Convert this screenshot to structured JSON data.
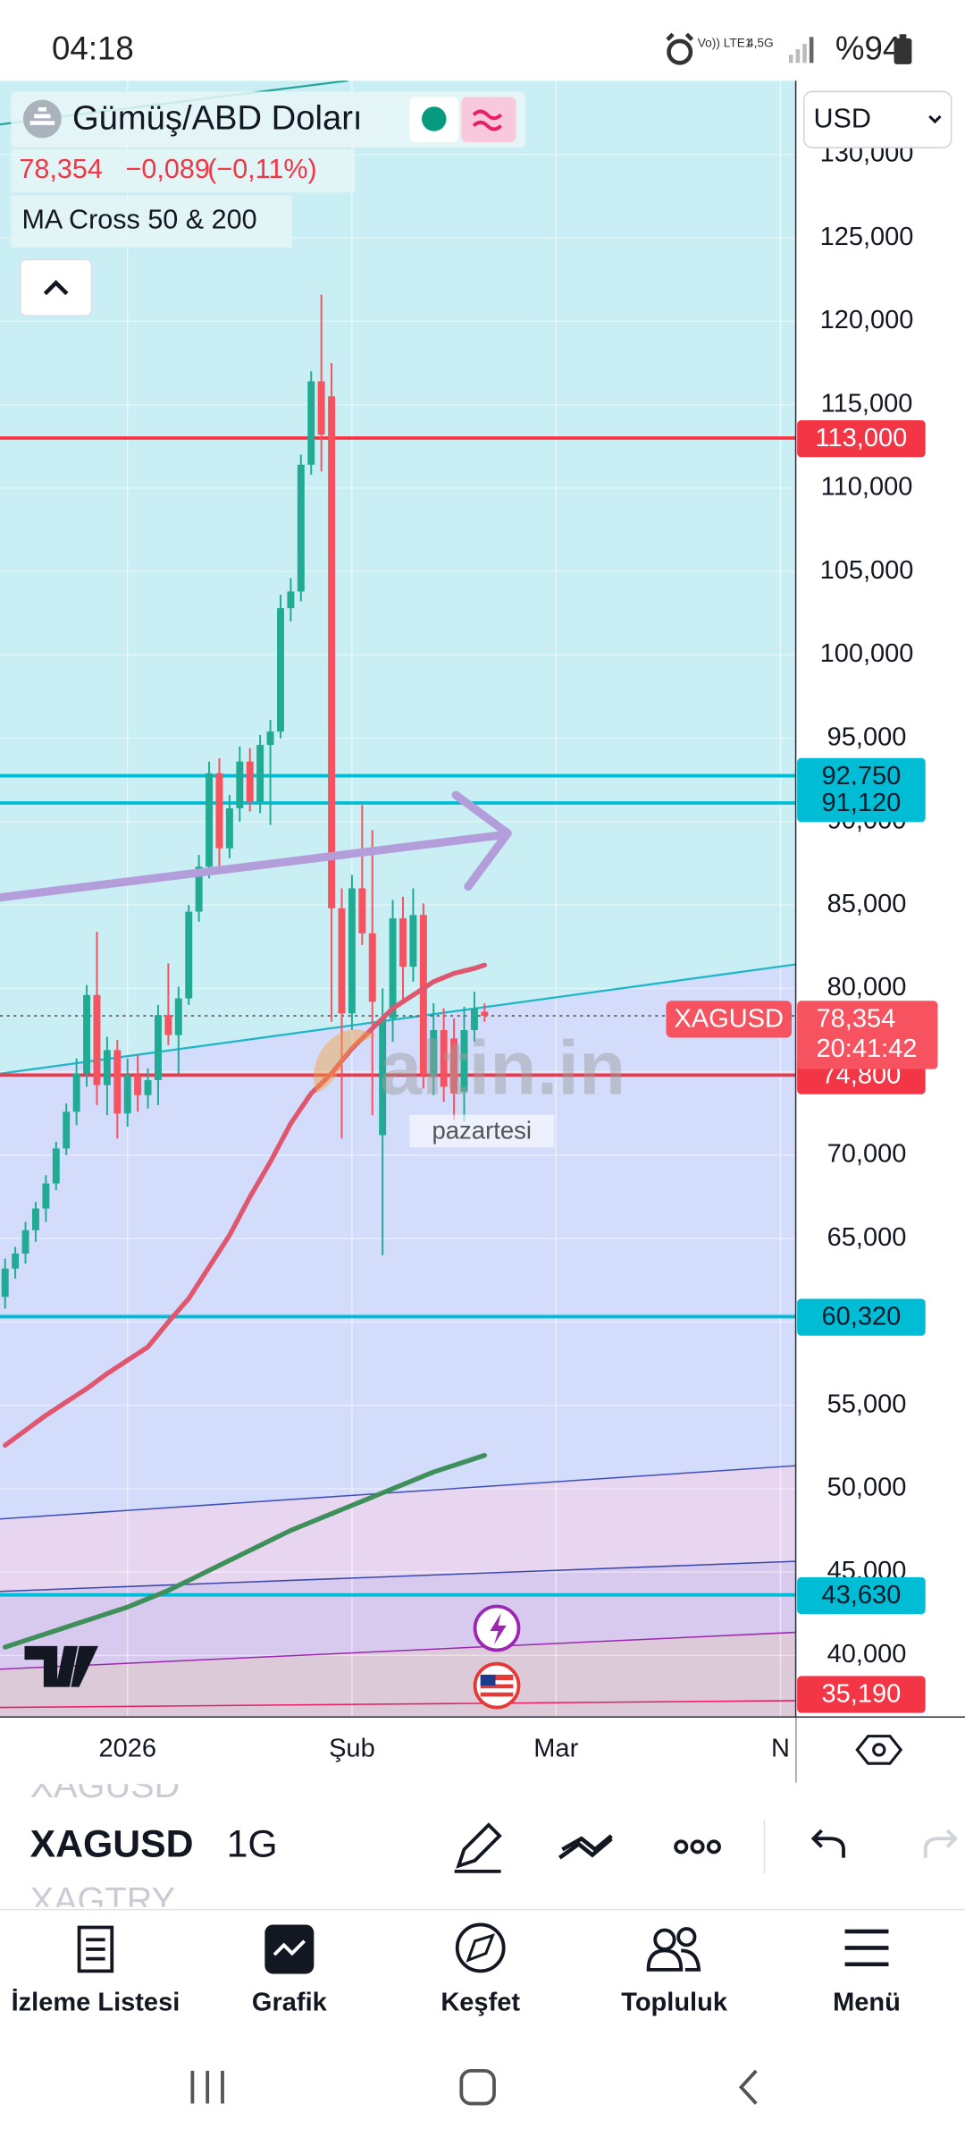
{
  "status_bar": {
    "time": "04:18",
    "network": "Vo)) LTE1",
    "network_gen": "4,5G",
    "battery": "%94"
  },
  "chart_data": {
    "type": "candlestick",
    "title": "Gümüş/ABD Doları",
    "last": {
      "value": 78.354,
      "label": "78,354"
    },
    "change": {
      "value": -0.089,
      "label": "−0,089"
    },
    "change_pct": {
      "value": -0.11,
      "label": "(−0,11%)"
    },
    "indicator": "MA Cross 50 & 200",
    "currency": "USD",
    "symbol": "XAGUSD",
    "countdown": "20:41:42",
    "watermark": "altin.in",
    "annotation": "pazartesi",
    "up_color": "#22ab94",
    "down_color": "#f7525f",
    "categories": [
      null,
      null,
      null,
      null,
      null,
      null,
      null,
      null,
      null,
      null,
      null,
      null,
      "2026",
      null,
      null,
      null,
      null,
      null,
      null,
      null,
      null,
      null,
      null,
      null,
      null,
      null,
      null,
      null,
      null,
      null,
      null,
      null,
      null,
      null,
      "Şub",
      null,
      null,
      null,
      null,
      null,
      null,
      null,
      null,
      null,
      null,
      null,
      null,
      null,
      null,
      null,
      null,
      null,
      null,
      null,
      "Mar",
      null,
      null,
      null,
      null,
      null,
      null,
      null,
      null,
      null,
      null,
      null,
      null,
      null,
      null,
      null,
      null,
      null,
      null,
      null,
      null,
      null,
      "N",
      null
    ],
    "open": [
      61.5,
      63.2,
      64.1,
      65.5,
      66.8,
      68.3,
      70.4,
      72.6,
      74.9,
      79.6,
      74.2,
      76.3,
      72.5,
      74.8,
      73.6,
      74.5,
      78.4,
      77.2,
      79.4,
      84.6,
      87.3,
      92.9,
      88.4,
      90.8,
      93.6,
      91.2,
      94.6,
      95.4,
      102.8,
      103.8,
      111.4,
      116.4,
      115.5,
      84.8,
      78.5,
      86.0,
      83.3,
      71.2,
      78.2,
      84.2,
      81.3,
      84.4,
      74.8,
      77.5,
      77.0,
      73.8,
      77.5,
      78.6,
      null,
      null,
      null,
      null,
      null,
      null,
      null,
      null,
      null,
      null,
      null,
      null,
      null,
      null,
      null,
      null,
      null,
      null,
      null,
      null,
      null,
      null,
      null,
      null,
      null,
      null,
      null,
      null,
      null,
      null
    ],
    "high": [
      63.8,
      64.5,
      66.0,
      67.2,
      68.8,
      70.8,
      73.1,
      75.8,
      80.2,
      83.4,
      77.1,
      76.9,
      75.8,
      76.0,
      75.2,
      79.0,
      81.5,
      80.1,
      85.0,
      88.0,
      93.6,
      93.8,
      91.6,
      94.5,
      94.4,
      95.2,
      96.1,
      103.6,
      104.6,
      112.0,
      117.0,
      121.6,
      117.5,
      86.0,
      86.8,
      91.0,
      89.5,
      80.0,
      85.3,
      85.5,
      86.0,
      85.1,
      79.1,
      78.8,
      78.2,
      78.9,
      79.8,
      79.1,
      null,
      null,
      null,
      null,
      null,
      null,
      null,
      null,
      null,
      null,
      null,
      null,
      null,
      null,
      null,
      null,
      null,
      null,
      null,
      null,
      null,
      null,
      null,
      null,
      null,
      null,
      null,
      null,
      null,
      null
    ],
    "low": [
      60.8,
      62.6,
      63.5,
      64.8,
      66.0,
      67.9,
      70.0,
      71.8,
      74.1,
      73.0,
      72.4,
      71.0,
      71.7,
      72.6,
      72.8,
      73.0,
      76.6,
      74.9,
      79.0,
      84.0,
      86.6,
      87.0,
      87.8,
      90.0,
      90.6,
      90.5,
      89.8,
      95.0,
      102.0,
      103.2,
      110.8,
      111.0,
      78.0,
      71.0,
      77.5,
      82.6,
      72.4,
      64.0,
      76.8,
      79.2,
      80.4,
      74.0,
      73.6,
      73.2,
      72.1,
      72.0,
      76.8,
      78.0,
      null,
      null,
      null,
      null,
      null,
      null,
      null,
      null,
      null,
      null,
      null,
      null,
      null,
      null,
      null,
      null,
      null,
      null,
      null,
      null,
      null,
      null,
      null,
      null,
      null,
      null,
      null,
      null,
      null,
      null
    ],
    "close": [
      63.2,
      64.1,
      65.5,
      66.8,
      68.3,
      70.4,
      72.6,
      74.9,
      79.6,
      74.2,
      76.3,
      72.5,
      74.8,
      73.6,
      74.5,
      78.4,
      77.2,
      79.4,
      84.6,
      87.3,
      92.9,
      88.4,
      90.8,
      93.6,
      91.2,
      94.6,
      95.4,
      102.8,
      103.8,
      111.4,
      116.4,
      113.2,
      84.8,
      78.5,
      86.0,
      83.3,
      79.2,
      78.2,
      84.2,
      81.3,
      84.4,
      74.8,
      77.5,
      74.1,
      73.7,
      77.5,
      78.8,
      78.354,
      null,
      null,
      null,
      null,
      null,
      null,
      null,
      null,
      null,
      null,
      null,
      null,
      null,
      null,
      null,
      null,
      null,
      null,
      null,
      null,
      null,
      null,
      null,
      null,
      null,
      null,
      null,
      null,
      null,
      null
    ],
    "ma_lines": [
      {
        "color": "#e0566e",
        "values": [
          52.6,
          53.05,
          53.5,
          53.95,
          54.4,
          54.8,
          55.2,
          55.6,
          56.0,
          56.45,
          56.9,
          57.3,
          57.7,
          58.1,
          58.5,
          59.25,
          60.0,
          60.7,
          61.4,
          62.35,
          63.3,
          64.25,
          65.2,
          66.35,
          67.5,
          68.55,
          69.6,
          70.75,
          71.9,
          72.8,
          73.7,
          74.3,
          74.9,
          75.65,
          76.4,
          77.0,
          77.6,
          78.2,
          78.8,
          79.2,
          79.6,
          80.0,
          80.4,
          80.65,
          80.9,
          81.05,
          81.2,
          81.4,
          null,
          null,
          null,
          null,
          null,
          null,
          null,
          null,
          null,
          null,
          null,
          null,
          null,
          null,
          null,
          null,
          null,
          null,
          null,
          null,
          null,
          null,
          null,
          null,
          null,
          null,
          null,
          null,
          null,
          null
        ]
      },
      {
        "color": "#3f8f5a",
        "values": [
          40.5,
          40.7,
          40.9,
          41.1,
          41.3,
          41.5,
          41.7,
          41.9,
          42.1,
          42.3,
          42.5,
          42.7,
          42.9,
          43.15,
          43.4,
          43.65,
          43.9,
          44.2,
          44.5,
          44.8,
          45.1,
          45.4,
          45.7,
          46.0,
          46.3,
          46.6,
          46.9,
          47.2,
          47.5,
          47.75,
          48.0,
          48.25,
          48.5,
          48.75,
          49.0,
          49.25,
          49.5,
          49.75,
          50.0,
          50.25,
          50.5,
          50.75,
          51.0,
          51.2,
          51.4,
          51.6,
          51.8,
          52.0,
          null,
          null,
          null,
          null,
          null,
          null,
          null,
          null,
          null,
          null,
          null,
          null,
          null,
          null,
          null,
          null,
          null,
          null,
          null,
          null,
          null,
          null,
          null,
          null,
          null,
          null,
          null,
          null,
          null,
          null
        ]
      }
    ],
    "ylim": [
      36.39,
      134.43
    ],
    "yticks": [
      {
        "value": 40,
        "label": "40,000"
      },
      {
        "value": 45,
        "label": "45,000"
      },
      {
        "value": 50,
        "label": "50,000"
      },
      {
        "value": 55,
        "label": "55,000"
      },
      {
        "value": 60,
        "label": "60,000"
      },
      {
        "value": 65,
        "label": "65,000"
      },
      {
        "value": 70,
        "label": "70,000"
      },
      {
        "value": 75,
        "label": "75,000"
      },
      {
        "value": 80,
        "label": "80,000"
      },
      {
        "value": 85,
        "label": "85,000"
      },
      {
        "value": 90,
        "label": "90,000"
      },
      {
        "value": 95,
        "label": "95,000"
      },
      {
        "value": 100,
        "label": "100,000"
      },
      {
        "value": 105,
        "label": "105,000"
      },
      {
        "value": 110,
        "label": "110,000"
      },
      {
        "value": 115,
        "label": "115,000"
      },
      {
        "value": 120,
        "label": "120,000"
      },
      {
        "value": 125,
        "label": "125,000"
      },
      {
        "value": 130,
        "label": "130,000"
      }
    ],
    "grid": true,
    "price_lines": [
      {
        "value": 113,
        "label": "113,000",
        "color": "#f23645",
        "text_color": "#ffffff"
      },
      {
        "value": 92.75,
        "label": "92,750",
        "color": "#00bcd4",
        "text_color": "#0b1b2b"
      },
      {
        "value": 91.12,
        "label": "91,120",
        "color": "#00bcd4",
        "text_color": "#0b1b2b"
      },
      {
        "value": 74.8,
        "label": "74,800",
        "color": "#f23645",
        "text_color": "#ffffff"
      },
      {
        "value": 60.32,
        "label": "60,320",
        "color": "#00bcd4",
        "text_color": "#0b1b2b"
      },
      {
        "value": 43.63,
        "label": "43,630",
        "color": "#00bcd4",
        "text_color": "#0b1b2b"
      },
      {
        "value": 35.19,
        "label": "35,190",
        "color": "#f23645",
        "text_color": "#ffffff"
      }
    ]
  },
  "toolbar": {
    "symbol_prev": "XAGUSD",
    "symbol": "XAGUSD",
    "interval": "1G",
    "symbol_next": "XAGTRY"
  },
  "nav": {
    "items": [
      {
        "label": "İzleme Listesi"
      },
      {
        "label": "Grafik"
      },
      {
        "label": "Keşfet"
      },
      {
        "label": "Topluluk"
      },
      {
        "label": "Menü"
      }
    ]
  }
}
